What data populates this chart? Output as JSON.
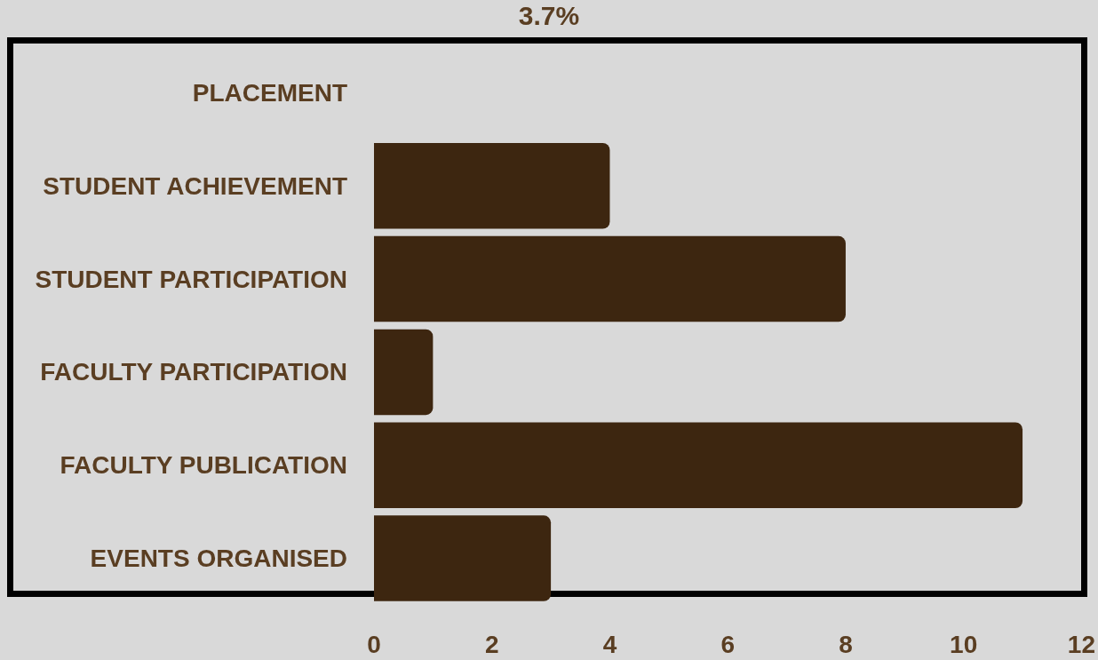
{
  "chart_data": {
    "type": "bar",
    "orientation": "horizontal",
    "annotations": [
      "3.7%"
    ],
    "categories": [
      "PLACEMENT",
      "STUDENT ACHIEVEMENT",
      "STUDENT PARTICIPATION",
      "FACULTY PARTICIPATION",
      "FACULTY PUBLICATION",
      "EVENTS ORGANISED"
    ],
    "values": [
      0,
      4,
      8,
      1,
      11,
      3
    ],
    "color": "#3d2610",
    "xlim": [
      0,
      12
    ],
    "xticks": [
      0,
      2,
      4,
      6,
      8,
      10,
      12
    ],
    "grid": false
  }
}
